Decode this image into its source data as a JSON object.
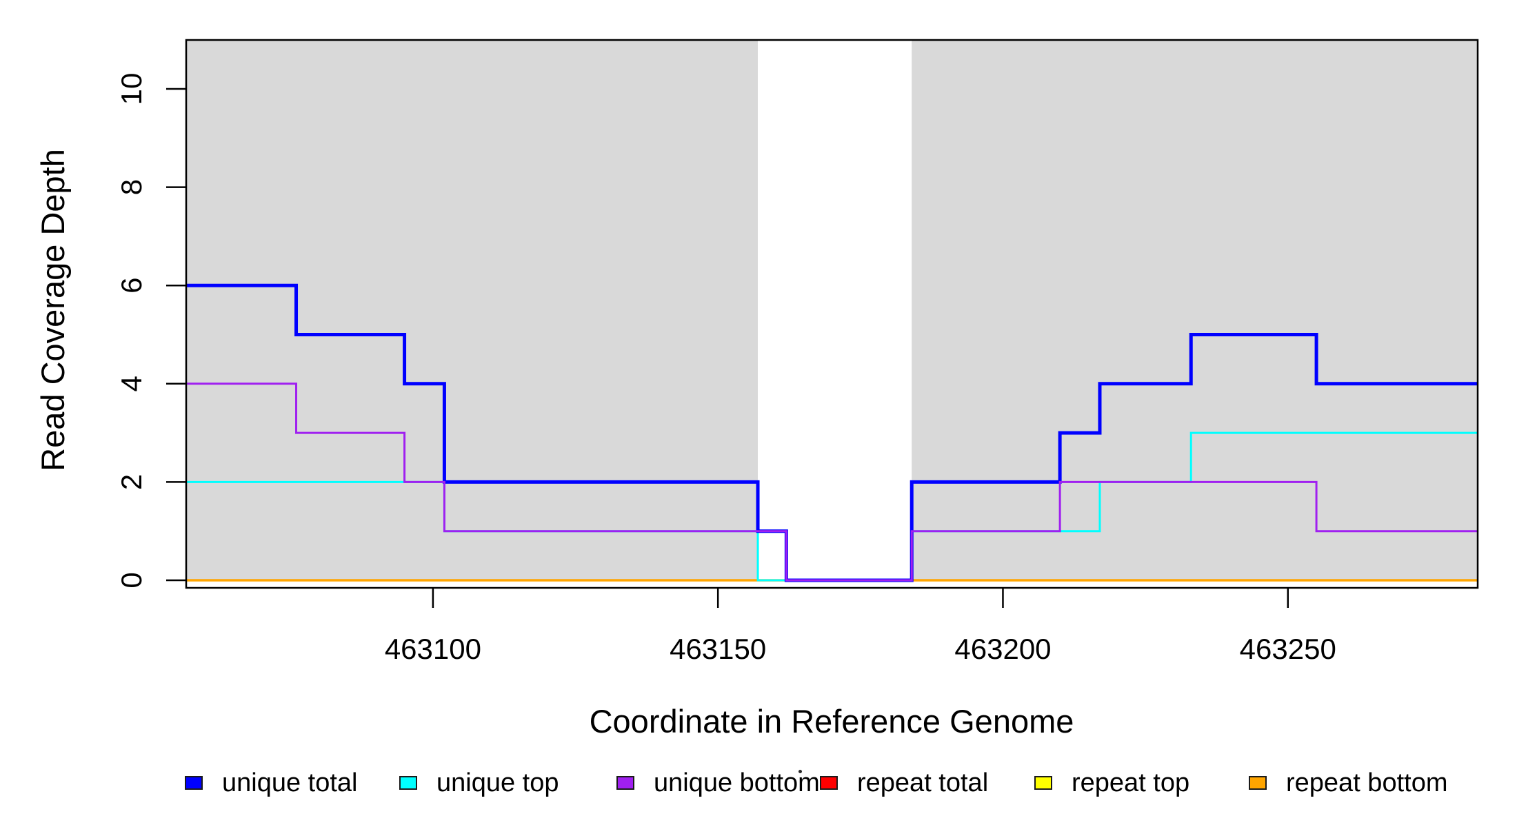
{
  "figure": {
    "background": "#FFFFFF",
    "shade_color": "#D9D9D9",
    "axis_color": "#000000"
  },
  "chart_data": {
    "type": "line",
    "subtype": "step-coverage",
    "title": "",
    "xlabel": "Coordinate in Reference Genome",
    "ylabel": "Read Coverage Depth",
    "xlim": [
      463056.7,
      463283.3
    ],
    "ylim": [
      0,
      11
    ],
    "x_ticks": [
      463100,
      463150,
      463200,
      463250
    ],
    "y_ticks": [
      0,
      2,
      4,
      6,
      8,
      10
    ],
    "grid": "off",
    "shaded_regions": [
      {
        "start": 463056.7,
        "end": 463157,
        "color": "#D9D9D9"
      },
      {
        "start": 463184,
        "end": 463283.3,
        "color": "#D9D9D9"
      }
    ],
    "series": [
      {
        "name": "repeat total",
        "color": "#FF0000",
        "line_width": 2.5,
        "edges": [
          463056.7,
          463283.3
        ],
        "values": [
          0
        ]
      },
      {
        "name": "repeat top",
        "color": "#FFFF00",
        "line_width": 2.5,
        "edges": [
          463056.7,
          463283.3
        ],
        "values": [
          0
        ]
      },
      {
        "name": "repeat bottom",
        "color": "#FFA500",
        "line_width": 3.5,
        "edges": [
          463056.7,
          463283.3
        ],
        "values": [
          0
        ]
      },
      {
        "name": "unique top",
        "color": "#00FFFF",
        "line_width": 3,
        "edges": [
          463056.7,
          463102,
          463157,
          463184,
          463217,
          463233,
          463283.3
        ],
        "values": [
          2,
          1,
          0,
          1,
          2,
          3
        ]
      },
      {
        "name": "unique total",
        "color": "#0000FF",
        "line_width": 5,
        "edges": [
          463056.7,
          463076,
          463095,
          463102,
          463157,
          463162,
          463184,
          463210,
          463217,
          463233,
          463255,
          463283.3
        ],
        "values": [
          6,
          5,
          4,
          2,
          1,
          0,
          2,
          3,
          4,
          5,
          4
        ]
      },
      {
        "name": "unique bottom",
        "color": "#A020F0",
        "line_width": 3,
        "edges": [
          463056.7,
          463076,
          463095,
          463102,
          463162,
          463184,
          463210,
          463255,
          463283.3
        ],
        "values": [
          4,
          3,
          2,
          1,
          0,
          1,
          2,
          1
        ]
      }
    ],
    "legend": {
      "position": "bottom",
      "items": [
        {
          "label": "unique total",
          "color": "#0000FF"
        },
        {
          "label": "unique top",
          "color": "#00FFFF"
        },
        {
          "label": "unique bottom",
          "color": "#A020F0"
        },
        {
          "label": "repeat total",
          "color": "#FF0000"
        },
        {
          "label": "repeat top",
          "color": "#FFFF00"
        },
        {
          "label": "repeat bottom",
          "color": "#FFA500"
        }
      ]
    }
  }
}
